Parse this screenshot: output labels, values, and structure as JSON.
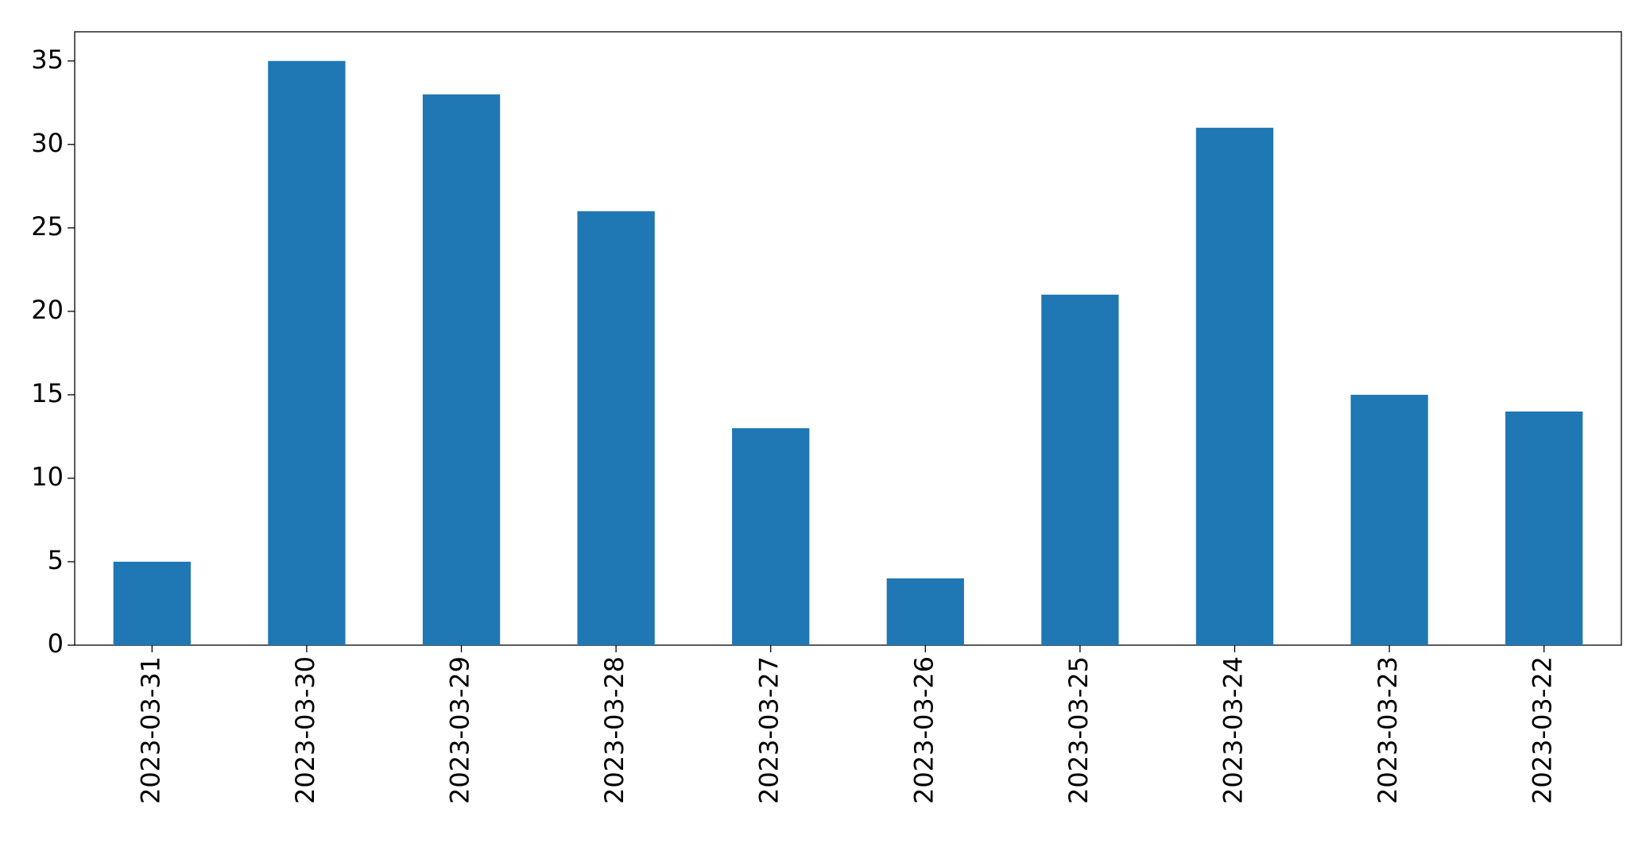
{
  "chart_data": {
    "type": "bar",
    "categories": [
      "2023-03-31",
      "2023-03-30",
      "2023-03-29",
      "2023-03-28",
      "2023-03-27",
      "2023-03-26",
      "2023-03-25",
      "2023-03-24",
      "2023-03-23",
      "2023-03-22"
    ],
    "values": [
      5,
      35,
      33,
      26,
      13,
      4,
      21,
      31,
      15,
      14
    ],
    "color": "#1f77b4",
    "ylim": [
      0,
      36.75
    ],
    "yticks": [
      0,
      5,
      10,
      15,
      20,
      25,
      30,
      35
    ],
    "grid": false
  }
}
